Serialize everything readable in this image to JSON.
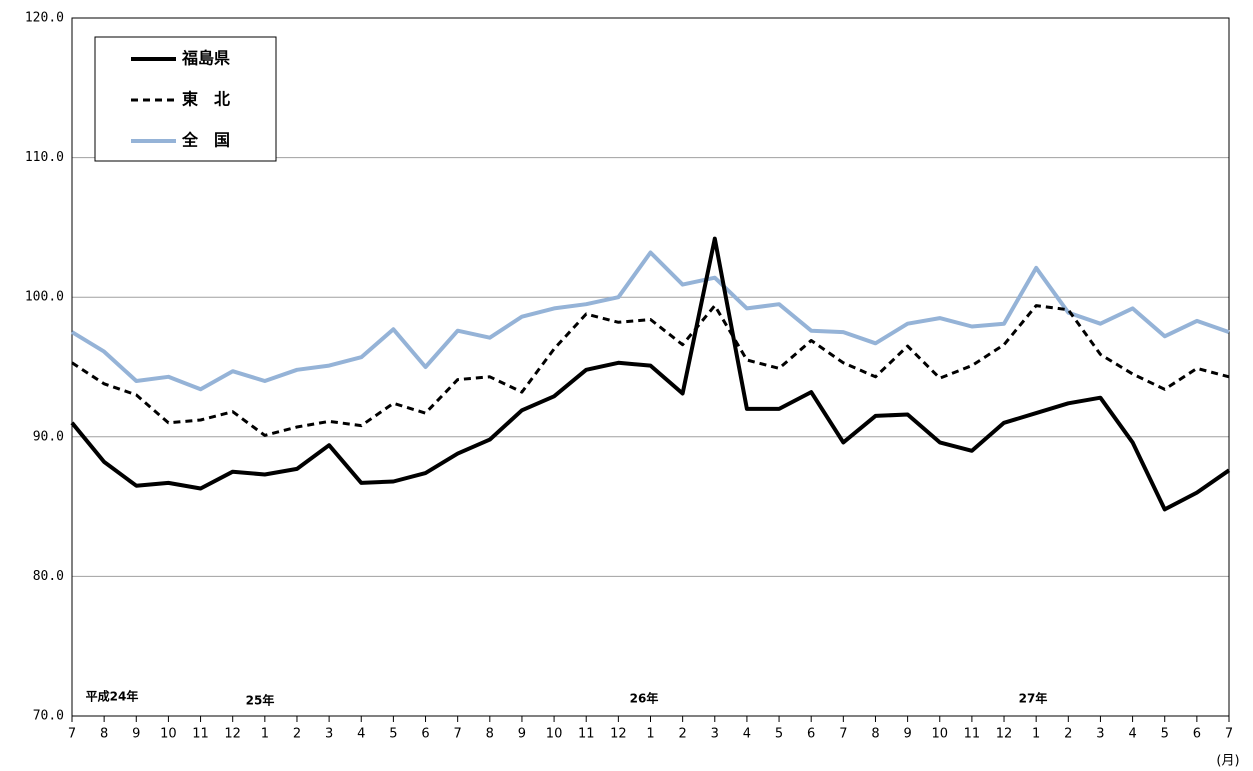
{
  "chart_data": {
    "type": "line",
    "categories": [
      "7",
      "8",
      "9",
      "10",
      "11",
      "12",
      "1",
      "2",
      "3",
      "4",
      "5",
      "6",
      "7",
      "8",
      "9",
      "10",
      "11",
      "12",
      "1",
      "2",
      "3",
      "4",
      "5",
      "6",
      "7",
      "8",
      "9",
      "10",
      "11",
      "12",
      "1",
      "2",
      "3",
      "4",
      "5",
      "6",
      "7"
    ],
    "series": [
      {
        "name": "福島県",
        "color": "#000000",
        "dash": false,
        "values": [
          91.0,
          88.2,
          86.5,
          86.7,
          86.3,
          87.5,
          87.3,
          87.7,
          89.4,
          86.7,
          86.8,
          87.4,
          88.8,
          89.8,
          91.9,
          92.9,
          94.8,
          95.3,
          95.1,
          93.1,
          104.2,
          92.0,
          92.0,
          93.2,
          89.6,
          91.5,
          91.6,
          89.6,
          89.0,
          91.0,
          91.7,
          92.4,
          92.8,
          89.6,
          84.8,
          86.0,
          87.6
        ]
      },
      {
        "name": "東　北",
        "color": "#000000",
        "dash": true,
        "values": [
          95.3,
          93.8,
          93.0,
          91.0,
          91.2,
          91.8,
          90.1,
          90.7,
          91.1,
          90.8,
          92.4,
          91.7,
          94.1,
          94.3,
          93.2,
          96.3,
          98.8,
          98.2,
          98.4,
          96.6,
          99.4,
          95.5,
          94.9,
          96.9,
          95.3,
          94.3,
          96.5,
          94.2,
          95.1,
          96.6,
          99.4,
          99.1,
          95.9,
          94.5,
          93.4,
          94.9,
          94.3
        ]
      },
      {
        "name": "全　国",
        "color": "#95b3d7",
        "dash": false,
        "values": [
          97.5,
          96.1,
          94.0,
          94.3,
          93.4,
          94.7,
          94.0,
          94.8,
          95.1,
          95.7,
          97.7,
          95.0,
          97.6,
          97.1,
          98.6,
          99.2,
          99.5,
          100.0,
          103.2,
          100.9,
          101.4,
          99.2,
          99.5,
          97.6,
          97.5,
          96.7,
          98.1,
          98.5,
          97.9,
          98.1,
          102.1,
          98.9,
          98.1,
          99.2,
          97.2,
          98.3,
          97.5
        ]
      }
    ],
    "year_labels": [
      "平成24年",
      "25年",
      "26年",
      "27年"
    ],
    "x_unit": "(月)",
    "ylim": [
      70,
      120
    ],
    "yticks": [
      {
        "value": 70,
        "label": "70.0"
      },
      {
        "value": 80,
        "label": "80.0"
      },
      {
        "value": 90,
        "label": "90.0"
      },
      {
        "value": 100,
        "label": "100.0"
      },
      {
        "value": 110,
        "label": "110.0"
      },
      {
        "value": 120,
        "label": "120.0"
      }
    ],
    "grid": true,
    "legend": "upper left"
  }
}
